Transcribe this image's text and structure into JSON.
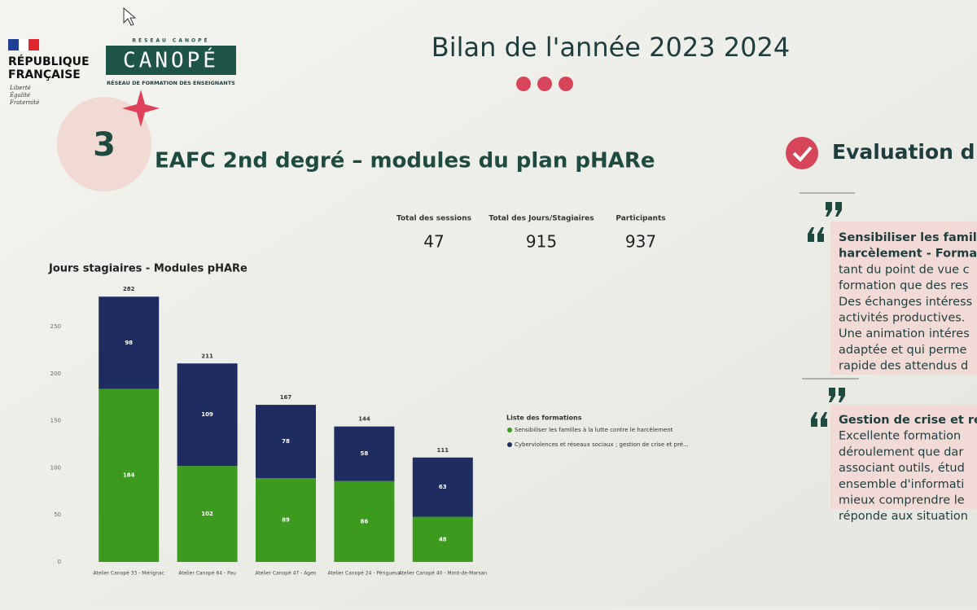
{
  "header": {
    "republique": [
      "RÉPUBLIQUE",
      "FRANÇAISE"
    ],
    "devise": [
      "Liberté",
      "Égalité",
      "Fraternité"
    ],
    "logo_top": "RÉSEAU CANOPÉ",
    "logo": "CANOPÉ",
    "logo_sub": "RÉSEAU DE FORMATION DES ENSEIGNANTS",
    "title": "Bilan de l'année 2023 2024"
  },
  "section": {
    "number": "3",
    "title": "EAFC 2nd degré – modules du plan pHARe"
  },
  "kpis": [
    {
      "label": "Total des sessions",
      "value": 47
    },
    {
      "label": "Total des Jours/Stagiaires",
      "value": 915
    },
    {
      "label": "Participants",
      "value": 937
    }
  ],
  "chart_data": {
    "type": "stacked_bar",
    "title": "Jours stagiaires - Modules pHARe",
    "categories": [
      "Atelier Canopé 33 - Mérignac",
      "Atelier Canopé 64 - Pau",
      "Atelier Canopé 47 - Agen",
      "Atelier Canopé 24 - Périgueux",
      "Atelier Canopé 40 - Mont-de-Marsan"
    ],
    "series": [
      {
        "name": "Sensibiliser les familles à la lutte contre le harcèlement",
        "color": "#3c9a1e",
        "values": [
          184,
          102,
          89,
          86,
          48
        ]
      },
      {
        "name": "Cyberviolences et réseaux sociaux ; gestion de crise et pré...",
        "color": "#1e2c60",
        "values": [
          98,
          109,
          78,
          58,
          63
        ]
      }
    ],
    "totals": [
      282,
      211,
      167,
      144,
      111
    ],
    "ylim": [
      0,
      290
    ],
    "yticks": [
      0,
      50,
      100,
      150,
      200,
      250
    ],
    "grid": false,
    "legend_title": "Liste des formations",
    "legend_position": "right"
  },
  "evaluation": {
    "title": "Evaluation d",
    "quotes": [
      {
        "lines": [
          "Sensibiliser les famille",
          "harcèlement - Format",
          "tant du point de vue c",
          "formation que des res",
          "Des échanges intéress",
          "activités productives.",
          "Une animation intéres",
          "adaptée et qui perme",
          "rapide des attendus d"
        ]
      },
      {
        "lines": [
          "Gestion de crise et ré",
          "Excellente formation",
          "déroulement que dar",
          "associant outils, étud",
          "ensemble d'informati",
          "mieux comprendre le",
          "réponde aux situation"
        ]
      }
    ]
  }
}
